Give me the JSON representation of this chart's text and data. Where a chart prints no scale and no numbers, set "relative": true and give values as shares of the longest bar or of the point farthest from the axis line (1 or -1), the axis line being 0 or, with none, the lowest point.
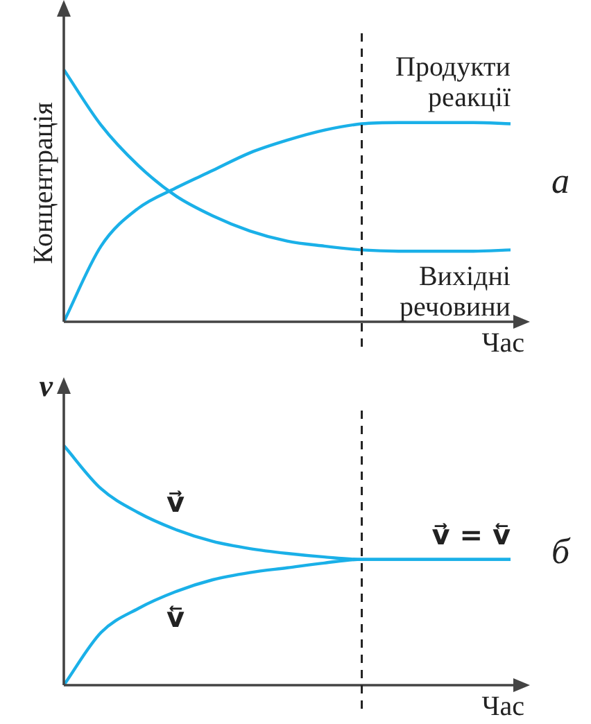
{
  "chart_data": [
    {
      "type": "line",
      "relative": true,
      "ylabel": "Концентрація",
      "xlabel": "Час",
      "legend": false,
      "marker": "none",
      "categories": [
        null,
        null,
        null,
        null,
        null,
        null,
        null,
        null,
        null,
        null,
        null,
        null,
        null
      ],
      "series": [
        {
          "name": "Продукти реакції",
          "color": "#1ab0e8",
          "values": [
            0,
            0.3,
            0.45,
            0.53,
            0.6,
            0.67,
            0.72,
            0.76,
            0.785,
            0.79,
            0.79,
            0.79,
            0.785
          ]
        },
        {
          "name": "Вихідні речовини",
          "color": "#1ab0e8",
          "values": [
            1,
            0.78,
            0.62,
            0.5,
            0.42,
            0.36,
            0.32,
            0.3,
            0.285,
            0.28,
            0.28,
            0.28,
            0.285
          ]
        }
      ],
      "annotations": [
        "а"
      ]
    },
    {
      "type": "line",
      "relative": true,
      "ylabel": "v",
      "xlabel": "Час",
      "legend": false,
      "marker": "none",
      "categories": [
        null,
        null,
        null,
        null,
        null,
        null,
        null,
        null,
        null,
        null,
        null,
        null,
        null
      ],
      "series": [
        {
          "name": "v⃗",
          "color": "#1ab0e8",
          "values": [
            1,
            0.82,
            0.72,
            0.65,
            0.6,
            0.57,
            0.55,
            0.535,
            0.525,
            0.525,
            0.525,
            0.525,
            0.525
          ]
        },
        {
          "name": "v⃖",
          "color": "#1ab0e8",
          "values": [
            0,
            0.22,
            0.32,
            0.39,
            0.44,
            0.47,
            0.49,
            0.51,
            0.525,
            0.525,
            0.525,
            0.525,
            0.525
          ]
        }
      ],
      "annotations": [
        {
          "text": "v⃗ = v⃖",
          "y": 0.525
        },
        "б"
      ]
    }
  ]
}
